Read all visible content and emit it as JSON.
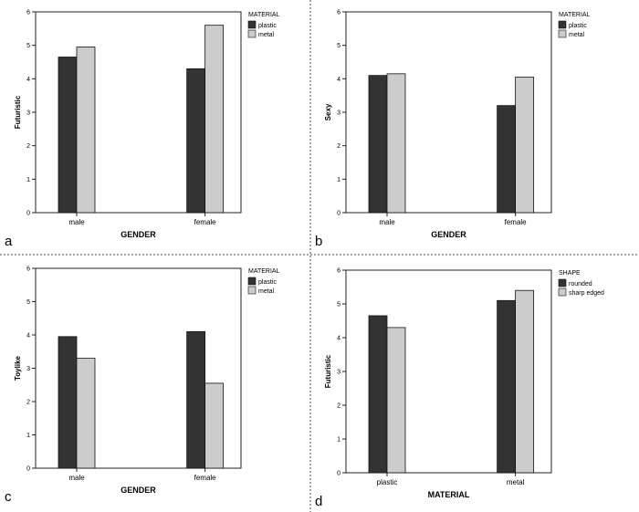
{
  "figure": {
    "colors": {
      "dark": "#333333",
      "light": "#cccccc",
      "frame": "#222222",
      "divider": "#444444"
    }
  },
  "chart_data": [
    {
      "type": "bar",
      "panel_label": "a",
      "categories": [
        "male",
        "female"
      ],
      "xlabel": "GENDER",
      "ylabel": "Futuristic",
      "ylim": [
        0,
        6
      ],
      "yticks": [
        0,
        1,
        2,
        3,
        4,
        5,
        6
      ],
      "legend_title": "MATERIAL",
      "legend_position": "top-right outside",
      "series": [
        {
          "name": "plastic",
          "values": [
            4.65,
            4.3
          ],
          "color": "#333333"
        },
        {
          "name": "metal",
          "values": [
            4.95,
            5.6
          ],
          "color": "#cccccc"
        }
      ]
    },
    {
      "type": "bar",
      "panel_label": "b",
      "categories": [
        "male",
        "female"
      ],
      "xlabel": "GENDER",
      "ylabel": "Sexy",
      "ylim": [
        0,
        6
      ],
      "yticks": [
        0,
        1,
        2,
        3,
        4,
        5,
        6
      ],
      "legend_title": "MATERIAL",
      "legend_position": "top-right outside",
      "series": [
        {
          "name": "plastic",
          "values": [
            4.1,
            3.2
          ],
          "color": "#333333"
        },
        {
          "name": "metal",
          "values": [
            4.15,
            4.05
          ],
          "color": "#cccccc"
        }
      ]
    },
    {
      "type": "bar",
      "panel_label": "c",
      "categories": [
        "male",
        "female"
      ],
      "xlabel": "GENDER",
      "ylabel": "Toylike",
      "ylim": [
        0,
        6
      ],
      "yticks": [
        0,
        1,
        2,
        3,
        4,
        5,
        6
      ],
      "legend_title": "MATERIAL",
      "legend_position": "top-right outside",
      "series": [
        {
          "name": "plastic",
          "values": [
            3.95,
            4.1
          ],
          "color": "#333333"
        },
        {
          "name": "metal",
          "values": [
            3.3,
            2.55
          ],
          "color": "#cccccc"
        }
      ]
    },
    {
      "type": "bar",
      "panel_label": "d",
      "categories": [
        "plastic",
        "metal"
      ],
      "xlabel": "MATERIAL",
      "ylabel": "Futuristic",
      "ylim": [
        0,
        6
      ],
      "yticks": [
        0,
        1,
        2,
        3,
        4,
        5,
        6
      ],
      "legend_title": "SHAPE",
      "legend_position": "top-right outside",
      "series": [
        {
          "name": "rounded",
          "values": [
            4.65,
            5.1
          ],
          "color": "#333333"
        },
        {
          "name": "sharp edged",
          "values": [
            4.3,
            5.4
          ],
          "color": "#cccccc"
        }
      ]
    }
  ]
}
